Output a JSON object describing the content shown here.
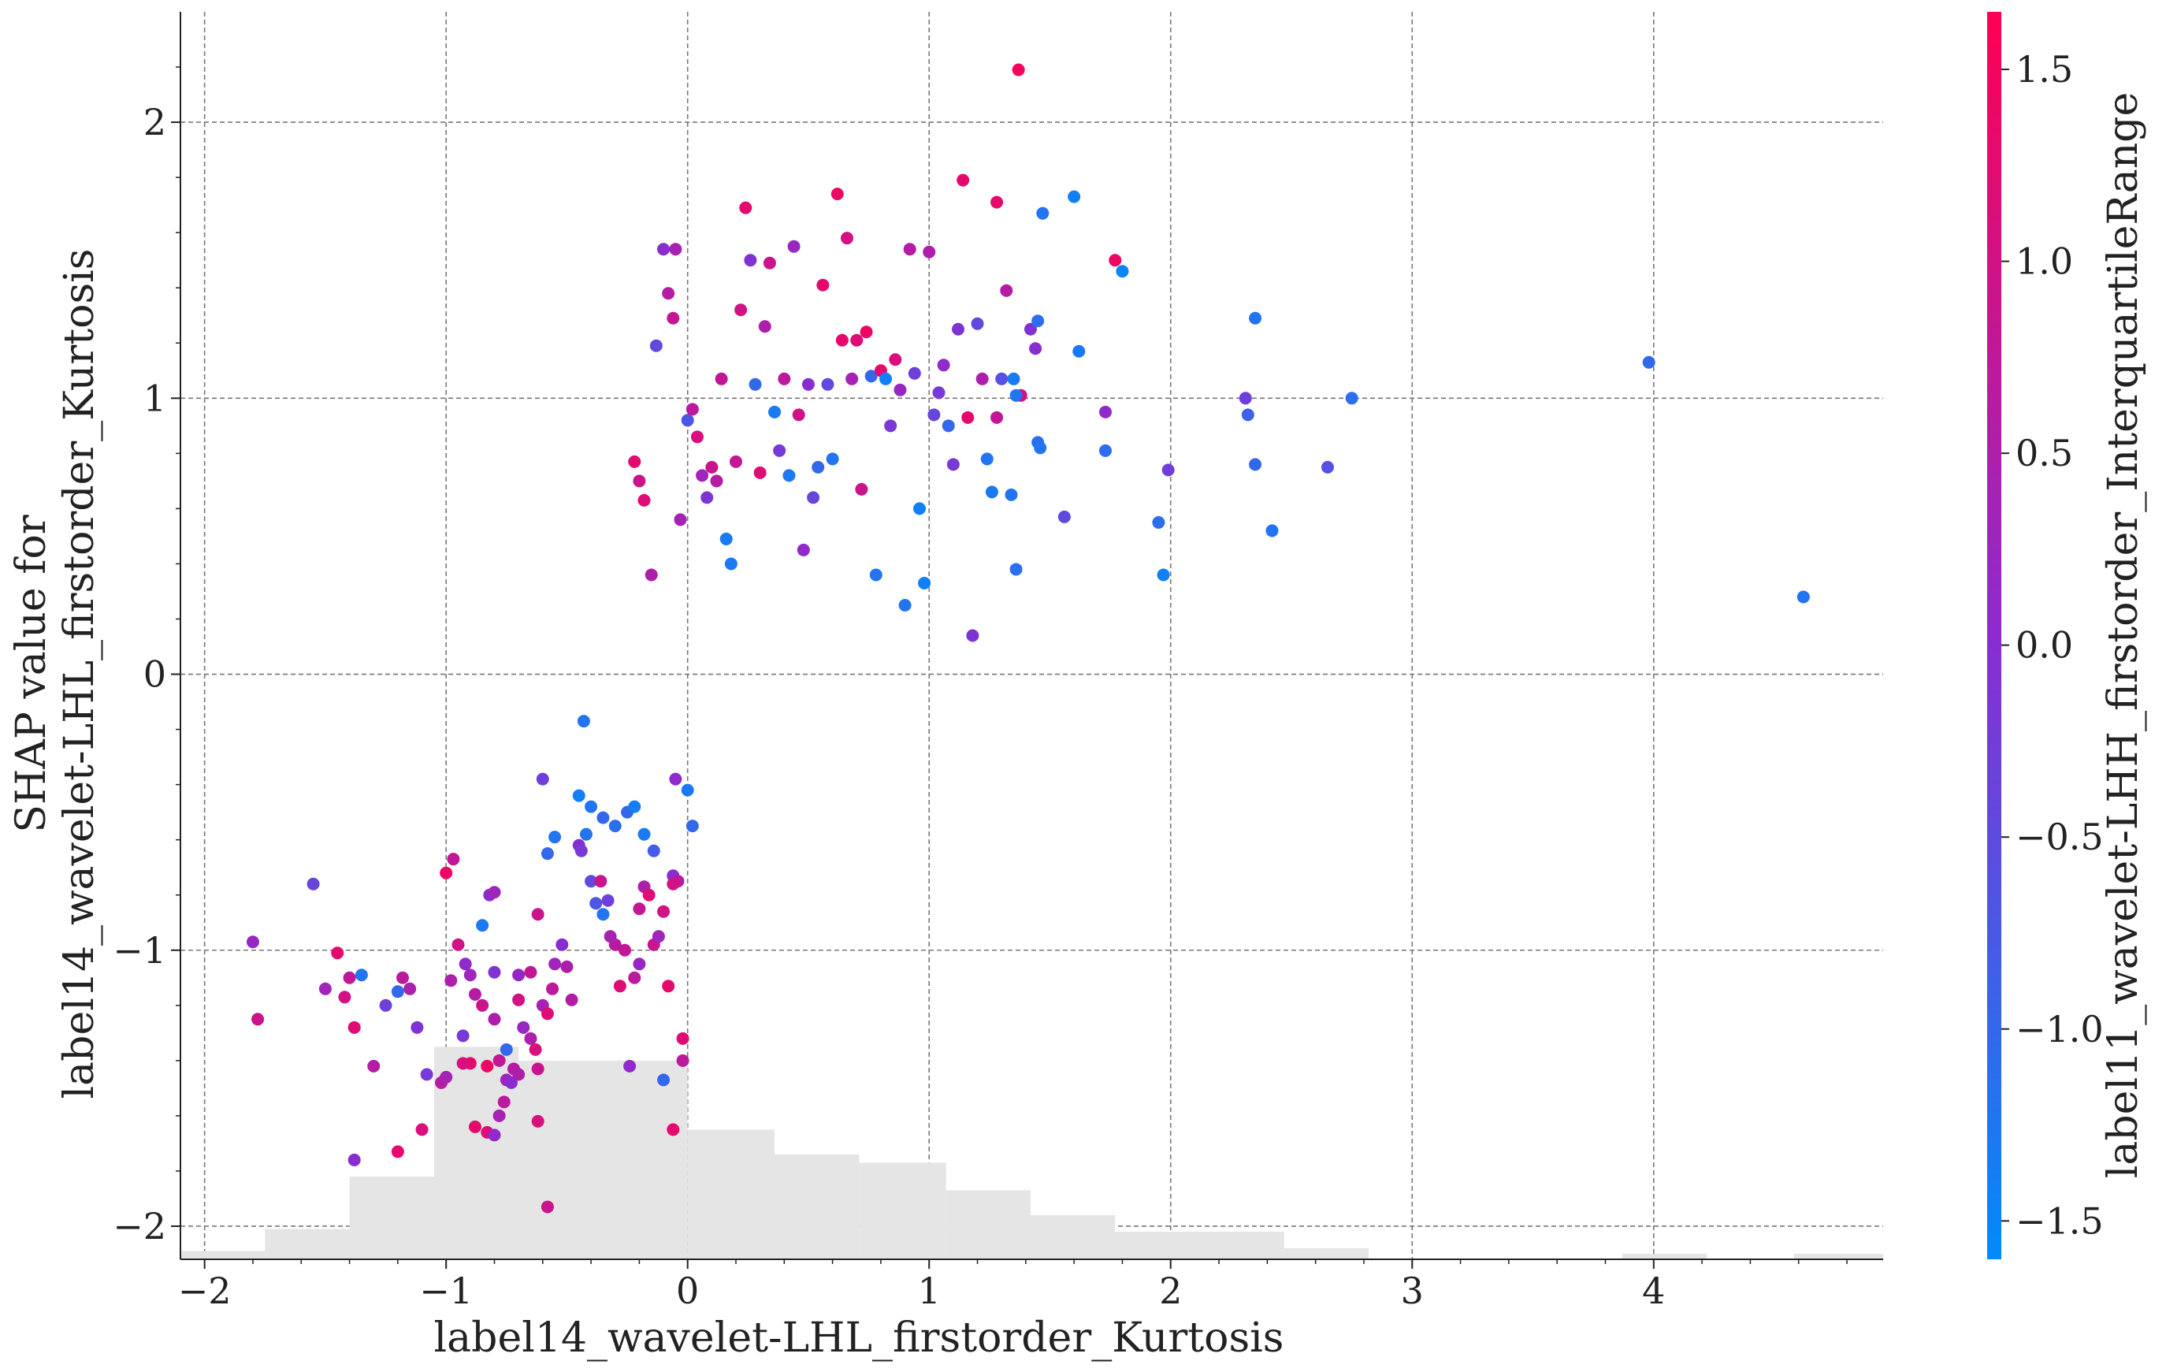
{
  "chart_data": {
    "type": "scatter",
    "title": "",
    "xlabel": "label14_wavelet-LHL_firstorder_Kurtosis",
    "ylabel_line1": "SHAP value for",
    "ylabel_line2": "label14_wavelet-LHL_firstorder_Kurtosis",
    "colorbar_label": "label11_wavelet-LHH_firstorder_InterquartileRange",
    "xlim": [
      -2.1,
      4.95
    ],
    "ylim": [
      -2.12,
      2.4
    ],
    "grid": true,
    "x_ticks": [
      -2,
      -1,
      0,
      1,
      2,
      3,
      4
    ],
    "x_tick_labels": [
      "−2",
      "−1",
      "0",
      "1",
      "2",
      "3",
      "4"
    ],
    "y_ticks": [
      -2,
      -1,
      0,
      1,
      2
    ],
    "y_tick_labels": [
      "−2",
      "−1",
      "0",
      "1",
      "2"
    ],
    "colorbar": {
      "range": [
        -1.6,
        1.65
      ],
      "ticks": [
        -1.5,
        -1.0,
        -0.5,
        0.0,
        0.5,
        1.0,
        1.5
      ],
      "tick_labels": [
        "−1.5",
        "−1.0",
        "−0.5",
        "0.0",
        "0.5",
        "1.0",
        "1.5"
      ],
      "color_low": "#008bfb",
      "color_mid": "#8b2cd0",
      "color_high": "#ff0052"
    },
    "histogram": {
      "color": "#e5e5e5",
      "bins": [
        {
          "x0": -2.1,
          "x1": -1.75,
          "h": 0.03
        },
        {
          "x0": -1.75,
          "x1": -1.4,
          "h": 0.11
        },
        {
          "x0": -1.4,
          "x1": -1.05,
          "h": 0.3
        },
        {
          "x0": -1.05,
          "x1": -0.7,
          "h": 0.77
        },
        {
          "x0": -0.7,
          "x1": 0.0,
          "h": 0.72
        },
        {
          "x0": 0.0,
          "x1": 0.36,
          "h": 0.47
        },
        {
          "x0": 0.36,
          "x1": 0.71,
          "h": 0.38
        },
        {
          "x0": 0.71,
          "x1": 1.07,
          "h": 0.35
        },
        {
          "x0": 1.07,
          "x1": 1.42,
          "h": 0.25
        },
        {
          "x0": 1.42,
          "x1": 1.77,
          "h": 0.16
        },
        {
          "x0": 1.77,
          "x1": 2.47,
          "h": 0.1
        },
        {
          "x0": 2.47,
          "x1": 2.82,
          "h": 0.04
        },
        {
          "x0": 3.87,
          "x1": 4.22,
          "h": 0.02
        },
        {
          "x0": 4.58,
          "x1": 4.95,
          "h": 0.02
        }
      ]
    },
    "points": [
      [
        -1.8,
        -0.97,
        0.2
      ],
      [
        -1.78,
        -1.25,
        0.9
      ],
      [
        -1.55,
        -0.76,
        -0.4
      ],
      [
        -1.5,
        -1.14,
        0.3
      ],
      [
        -1.45,
        -1.01,
        1.3
      ],
      [
        -1.42,
        -1.17,
        1.0
      ],
      [
        -1.4,
        -1.1,
        0.8
      ],
      [
        -1.38,
        -1.28,
        1.2
      ],
      [
        -1.35,
        -1.09,
        -1.2
      ],
      [
        -1.3,
        -1.42,
        0.6
      ],
      [
        -1.25,
        -1.2,
        -0.3
      ],
      [
        -1.2,
        -1.15,
        -1.0
      ],
      [
        -1.18,
        -1.1,
        0.7
      ],
      [
        -1.15,
        -1.14,
        0.5
      ],
      [
        -1.12,
        -1.28,
        -0.1
      ],
      [
        -1.1,
        -1.65,
        1.1
      ],
      [
        -1.08,
        -1.45,
        -0.2
      ],
      [
        -1.2,
        -1.73,
        1.3
      ],
      [
        -1.38,
        -1.76,
        0.0
      ],
      [
        -1.02,
        -1.48,
        0.6
      ],
      [
        -1.0,
        -1.46,
        0.4
      ],
      [
        -0.98,
        -1.11,
        0.5
      ],
      [
        -0.95,
        -0.98,
        1.0
      ],
      [
        -0.93,
        -1.31,
        -0.2
      ],
      [
        -1.0,
        -0.72,
        1.4
      ],
      [
        -0.97,
        -0.67,
        0.8
      ],
      [
        -0.92,
        -1.05,
        0.1
      ],
      [
        -0.9,
        -1.09,
        0.3
      ],
      [
        -0.88,
        -1.16,
        0.6
      ],
      [
        -0.85,
        -1.2,
        0.9
      ],
      [
        -0.83,
        -1.42,
        1.4
      ],
      [
        -0.88,
        -1.64,
        1.3
      ],
      [
        -0.83,
        -1.66,
        1.2
      ],
      [
        -0.8,
        -1.08,
        -0.1
      ],
      [
        -0.8,
        -1.25,
        0.5
      ],
      [
        -0.78,
        -1.4,
        0.8
      ],
      [
        -0.76,
        -1.55,
        0.7
      ],
      [
        -0.75,
        -1.47,
        0.3
      ],
      [
        -0.73,
        -1.48,
        0.0
      ],
      [
        -0.72,
        -1.43,
        0.6
      ],
      [
        -0.7,
        -1.09,
        0.2
      ],
      [
        -0.7,
        -1.45,
        0.5
      ],
      [
        -0.78,
        -1.6,
        0.4
      ],
      [
        -0.8,
        -1.67,
        0.1
      ],
      [
        -0.9,
        -1.41,
        1.3
      ],
      [
        -0.93,
        -1.41,
        1.1
      ],
      [
        -0.85,
        -0.91,
        -1.3
      ],
      [
        -0.82,
        -0.8,
        0.0
      ],
      [
        -0.8,
        -0.79,
        0.3
      ],
      [
        -0.75,
        -1.36,
        -1.0
      ],
      [
        -0.7,
        -1.18,
        1.0
      ],
      [
        -0.68,
        -1.28,
        0.2
      ],
      [
        -0.65,
        -1.32,
        0.5
      ],
      [
        -0.63,
        -1.36,
        1.1
      ],
      [
        -0.62,
        -1.43,
        0.9
      ],
      [
        -0.62,
        -1.62,
        1.1
      ],
      [
        -0.58,
        -1.93,
        0.9
      ],
      [
        -0.65,
        -1.08,
        0.8
      ],
      [
        -0.6,
        -1.2,
        0.4
      ],
      [
        -0.58,
        -1.23,
        1.2
      ],
      [
        -0.56,
        -1.14,
        0.7
      ],
      [
        -0.55,
        -1.05,
        0.3
      ],
      [
        -0.52,
        -0.98,
        0.0
      ],
      [
        -0.5,
        -1.06,
        0.5
      ],
      [
        -0.48,
        -1.18,
        0.6
      ],
      [
        -0.45,
        -0.62,
        0.0
      ],
      [
        -0.44,
        -0.64,
        -0.2
      ],
      [
        -0.42,
        -0.58,
        -1.2
      ],
      [
        -0.4,
        -0.75,
        -0.5
      ],
      [
        -0.38,
        -0.83,
        -0.7
      ],
      [
        -0.36,
        -0.75,
        0.9
      ],
      [
        -0.35,
        -0.87,
        -1.2
      ],
      [
        -0.33,
        -0.82,
        -0.3
      ],
      [
        -0.32,
        -0.95,
        0.4
      ],
      [
        -0.3,
        -0.98,
        0.6
      ],
      [
        -0.28,
        -1.13,
        1.2
      ],
      [
        -0.26,
        -1.0,
        0.8
      ],
      [
        -0.24,
        -1.42,
        0.1
      ],
      [
        -0.22,
        -1.1,
        0.7
      ],
      [
        -0.2,
        -1.05,
        0.2
      ],
      [
        -0.2,
        -0.85,
        0.8
      ],
      [
        -0.18,
        -0.77,
        0.5
      ],
      [
        -0.16,
        -0.8,
        1.2
      ],
      [
        -0.14,
        -0.98,
        0.9
      ],
      [
        -0.12,
        -0.95,
        0.3
      ],
      [
        -0.1,
        -0.86,
        1.0
      ],
      [
        -0.08,
        -1.13,
        1.3
      ],
      [
        -0.06,
        -0.73,
        0.0
      ],
      [
        -0.04,
        -0.75,
        0.6
      ],
      [
        -0.02,
        -1.32,
        1.2
      ],
      [
        0.0,
        -0.42,
        -1.3
      ],
      [
        0.02,
        -0.55,
        -1.0
      ],
      [
        -0.05,
        -0.38,
        0.1
      ],
      [
        -0.6,
        -0.38,
        -0.3
      ],
      [
        -0.45,
        -0.44,
        -1.4
      ],
      [
        -0.4,
        -0.48,
        -1.2
      ],
      [
        -0.35,
        -0.52,
        -1.0
      ],
      [
        -0.3,
        -0.55,
        -1.1
      ],
      [
        -0.25,
        -0.5,
        -1.0
      ],
      [
        -0.22,
        -0.48,
        -1.4
      ],
      [
        -0.18,
        -0.58,
        -1.3
      ],
      [
        -0.14,
        -0.64,
        -0.8
      ],
      [
        -0.62,
        -0.87,
        0.9
      ],
      [
        -0.58,
        -0.65,
        -1.0
      ],
      [
        -0.55,
        -0.59,
        -1.2
      ],
      [
        -0.43,
        -0.17,
        -1.2
      ],
      [
        -0.02,
        -1.4,
        0.7
      ],
      [
        -0.1,
        -1.47,
        -1.0
      ],
      [
        -0.06,
        -1.65,
        1.3
      ],
      [
        -0.06,
        -0.76,
        1.0
      ],
      [
        -0.22,
        0.77,
        1.3
      ],
      [
        -0.2,
        0.7,
        0.9
      ],
      [
        -0.18,
        0.63,
        1.2
      ],
      [
        -0.15,
        0.36,
        0.5
      ],
      [
        -0.13,
        1.19,
        -0.5
      ],
      [
        -0.1,
        1.54,
        0.0
      ],
      [
        -0.08,
        1.38,
        0.6
      ],
      [
        -0.06,
        1.29,
        0.8
      ],
      [
        -0.05,
        1.54,
        0.4
      ],
      [
        -0.03,
        0.56,
        0.4
      ],
      [
        0.0,
        0.92,
        -0.7
      ],
      [
        0.02,
        0.96,
        0.7
      ],
      [
        0.04,
        0.86,
        1.1
      ],
      [
        0.06,
        0.72,
        0.3
      ],
      [
        0.08,
        0.64,
        -0.1
      ],
      [
        0.1,
        0.75,
        0.9
      ],
      [
        0.12,
        0.7,
        0.6
      ],
      [
        0.14,
        1.07,
        0.8
      ],
      [
        0.16,
        0.49,
        -1.3
      ],
      [
        0.18,
        0.4,
        -1.3
      ],
      [
        0.2,
        0.77,
        0.8
      ],
      [
        0.22,
        1.32,
        1.0
      ],
      [
        0.24,
        1.69,
        1.3
      ],
      [
        0.26,
        1.5,
        -0.1
      ],
      [
        0.28,
        1.05,
        -1.0
      ],
      [
        0.3,
        0.73,
        1.2
      ],
      [
        0.32,
        1.26,
        0.5
      ],
      [
        0.34,
        1.49,
        0.9
      ],
      [
        0.36,
        0.95,
        -1.3
      ],
      [
        0.38,
        0.81,
        -0.2
      ],
      [
        0.4,
        1.07,
        0.7
      ],
      [
        0.42,
        0.72,
        -1.3
      ],
      [
        0.44,
        1.55,
        0.2
      ],
      [
        0.46,
        0.94,
        1.0
      ],
      [
        0.48,
        0.45,
        0.1
      ],
      [
        0.5,
        1.05,
        0.0
      ],
      [
        0.52,
        0.64,
        -0.4
      ],
      [
        0.54,
        0.75,
        -1.0
      ],
      [
        0.56,
        1.41,
        1.3
      ],
      [
        0.58,
        1.05,
        -0.5
      ],
      [
        0.6,
        0.78,
        -1.2
      ],
      [
        0.62,
        1.74,
        1.4
      ],
      [
        0.64,
        1.21,
        1.3
      ],
      [
        0.66,
        1.58,
        1.0
      ],
      [
        0.68,
        1.07,
        0.4
      ],
      [
        0.7,
        1.21,
        1.2
      ],
      [
        0.72,
        0.67,
        0.9
      ],
      [
        0.74,
        1.24,
        1.4
      ],
      [
        0.76,
        1.08,
        -1.0
      ],
      [
        0.78,
        0.36,
        -1.2
      ],
      [
        0.8,
        1.1,
        1.3
      ],
      [
        0.82,
        1.07,
        -1.4
      ],
      [
        0.84,
        0.9,
        -0.2
      ],
      [
        0.86,
        1.14,
        1.1
      ],
      [
        0.88,
        1.03,
        0.2
      ],
      [
        0.9,
        0.25,
        -1.2
      ],
      [
        0.92,
        1.54,
        0.6
      ],
      [
        0.94,
        1.09,
        -0.3
      ],
      [
        0.96,
        0.6,
        -1.4
      ],
      [
        0.98,
        0.33,
        -1.4
      ],
      [
        1.0,
        1.53,
        0.5
      ],
      [
        1.02,
        0.94,
        -0.4
      ],
      [
        1.04,
        1.02,
        -0.2
      ],
      [
        1.06,
        1.12,
        0.1
      ],
      [
        1.08,
        0.9,
        -1.0
      ],
      [
        1.1,
        0.76,
        -0.2
      ],
      [
        1.12,
        1.25,
        -0.1
      ],
      [
        1.14,
        1.79,
        1.3
      ],
      [
        1.16,
        0.93,
        1.3
      ],
      [
        1.18,
        0.14,
        -0.1
      ],
      [
        1.2,
        1.27,
        -0.5
      ],
      [
        1.22,
        1.07,
        0.5
      ],
      [
        1.24,
        0.78,
        -1.2
      ],
      [
        1.26,
        0.66,
        -1.3
      ],
      [
        1.28,
        0.93,
        0.8
      ],
      [
        1.3,
        1.07,
        -0.6
      ],
      [
        1.32,
        1.39,
        0.6
      ],
      [
        1.34,
        0.65,
        -1.2
      ],
      [
        1.36,
        0.38,
        -1.1
      ],
      [
        1.38,
        1.01,
        1.1
      ],
      [
        1.45,
        0.84,
        -1.1
      ],
      [
        1.28,
        1.71,
        1.3
      ],
      [
        1.35,
        1.07,
        -1.3
      ],
      [
        1.36,
        1.01,
        -1.2
      ],
      [
        1.37,
        2.19,
        1.5
      ],
      [
        1.42,
        1.25,
        -0.1
      ],
      [
        1.44,
        1.18,
        0.0
      ],
      [
        1.45,
        1.28,
        -1.1
      ],
      [
        1.46,
        0.82,
        -1.2
      ],
      [
        1.47,
        1.67,
        -1.2
      ],
      [
        1.56,
        0.57,
        -0.5
      ],
      [
        1.6,
        1.73,
        -1.4
      ],
      [
        1.62,
        1.17,
        -1.3
      ],
      [
        1.73,
        0.81,
        -1.1
      ],
      [
        1.73,
        0.95,
        0.1
      ],
      [
        1.77,
        1.5,
        1.4
      ],
      [
        1.8,
        1.46,
        -1.5
      ],
      [
        1.95,
        0.55,
        -1.1
      ],
      [
        1.97,
        0.36,
        -1.4
      ],
      [
        1.99,
        0.74,
        -0.3
      ],
      [
        2.31,
        1.0,
        -0.3
      ],
      [
        2.32,
        0.94,
        -0.9
      ],
      [
        2.35,
        1.29,
        -1.2
      ],
      [
        2.35,
        0.76,
        -1.0
      ],
      [
        2.42,
        0.52,
        -1.2
      ],
      [
        2.65,
        0.75,
        -0.6
      ],
      [
        2.75,
        1.0,
        -1.1
      ],
      [
        3.98,
        1.13,
        -1.0
      ],
      [
        4.62,
        0.28,
        -1.2
      ]
    ]
  }
}
